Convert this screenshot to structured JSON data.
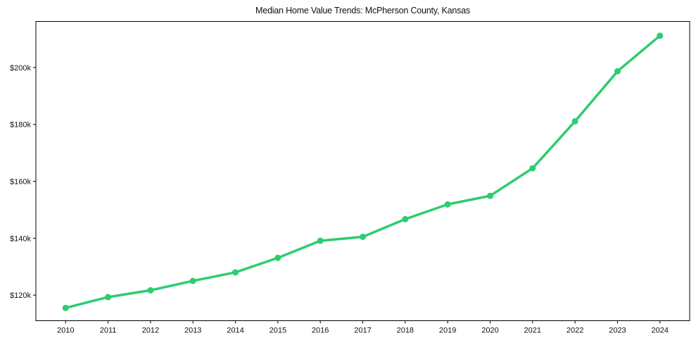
{
  "chart_data": {
    "type": "line",
    "title": "Median Home Value Trends: McPherson County, Kansas",
    "xlabel": "",
    "ylabel": "",
    "x": [
      2010,
      2011,
      2012,
      2013,
      2014,
      2015,
      2016,
      2017,
      2018,
      2019,
      2020,
      2021,
      2022,
      2023,
      2024
    ],
    "series": [
      {
        "name": "Median Home Value",
        "color": "#2ecc71",
        "marker": "circle",
        "values": [
          115500,
          119300,
          121700,
          125000,
          128000,
          133100,
          139100,
          140500,
          146700,
          151900,
          154900,
          164600,
          181100,
          198700,
          211200
        ]
      }
    ],
    "x_ticks": [
      "2010",
      "2011",
      "2012",
      "2013",
      "2014",
      "2015",
      "2016",
      "2017",
      "2018",
      "2019",
      "2020",
      "2021",
      "2022",
      "2023",
      "2024"
    ],
    "y_ticks": [
      {
        "value": 120000,
        "label": "$120k"
      },
      {
        "value": 140000,
        "label": "$140k"
      },
      {
        "value": 160000,
        "label": "$160k"
      },
      {
        "value": 180000,
        "label": "$180k"
      },
      {
        "value": 200000,
        "label": "$200k"
      }
    ],
    "xlim": [
      2009.3,
      2024.7
    ],
    "ylim": [
      111000,
      216200
    ],
    "grid": false,
    "legend": null
  }
}
